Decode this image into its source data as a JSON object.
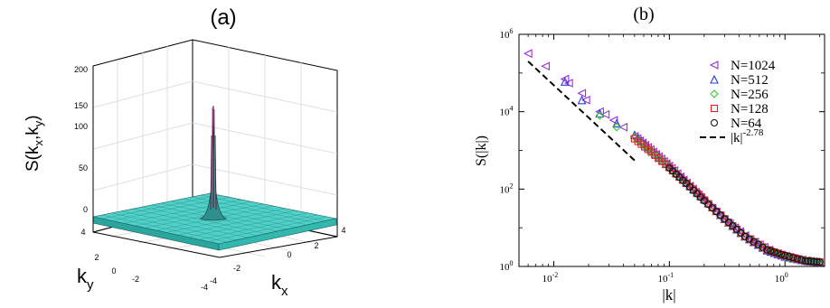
{
  "panel_a": {
    "label": "(a)",
    "zlabel_main": "S(k",
    "zlabel_sub1": "x",
    "zlabel_sep": ",k",
    "zlabel_sub2": "y",
    "zlabel_end": ")",
    "xlabel_main": "k",
    "xlabel_sub": "x",
    "ylabel_main": "k",
    "ylabel_sub": "y",
    "zticks": [
      "0",
      "50",
      "100",
      "150",
      "200"
    ],
    "xticks": [
      "-4",
      "-2",
      "0",
      "2",
      "4"
    ],
    "yticks": [
      "-4",
      "-2",
      "0",
      "2",
      "4"
    ],
    "surface_color": "#4fd1c9",
    "peak_color": "#c04aa8"
  },
  "chart_data": [
    {
      "type": "surface",
      "title": "(a)",
      "xlabel": "kx",
      "ylabel": "ky",
      "zlabel": "S(kx,ky)",
      "xlim": [
        -4,
        4
      ],
      "ylim": [
        -4,
        4
      ],
      "zlim": [
        0,
        200
      ],
      "peak": {
        "x": 0,
        "y": 0,
        "z": 160
      },
      "baseline_z": 0
    },
    {
      "type": "scatter",
      "title": "(b)",
      "xlabel": "|k|",
      "ylabel": "S(|k|)",
      "xscale": "log",
      "yscale": "log",
      "xlim": [
        0.005,
        2.2
      ],
      "ylim": [
        1,
        1000000
      ],
      "xticks": [
        "10",
        "10",
        "10"
      ],
      "xtick_exps": [
        "-2",
        "-1",
        "0"
      ],
      "xtick_values": [
        0.01,
        0.1,
        1
      ],
      "yticks": [
        "10",
        "10",
        "10",
        "10"
      ],
      "ytick_exps": [
        "0",
        "2",
        "4",
        "6"
      ],
      "ytick_values": [
        1,
        100,
        10000,
        1000000
      ],
      "legend_position": "top-right",
      "series": [
        {
          "name": "N=1024",
          "marker": "triangle-left",
          "color": "#9b30d9",
          "x": [
            0.006,
            0.0085,
            0.0125,
            0.0135,
            0.0175,
            0.019,
            0.025,
            0.028,
            0.033,
            0.04,
            0.05,
            0.065,
            0.085,
            0.11,
            0.15,
            0.2,
            0.3,
            0.5,
            0.8,
            1.2,
            1.8
          ],
          "y": [
            320000,
            150000,
            70000,
            55000,
            30000,
            20000,
            10000,
            8500,
            6000,
            4000,
            2300,
            1200,
            600,
            300,
            120,
            50,
            16,
            5,
            2.3,
            1.6,
            1.3
          ]
        },
        {
          "name": "N=512",
          "marker": "triangle-up",
          "color": "#2b3bd6",
          "x": [
            0.0125,
            0.0175,
            0.025,
            0.035,
            0.05,
            0.07,
            0.1,
            0.14,
            0.2,
            0.3,
            0.45,
            0.7,
            1.0,
            1.5,
            2.0
          ],
          "y": [
            60000,
            20000,
            9000,
            5000,
            2500,
            1000,
            380,
            150,
            55,
            17,
            6,
            2.6,
            1.8,
            1.4,
            1.3
          ]
        },
        {
          "name": "N=256",
          "marker": "diamond",
          "color": "#33cc33",
          "x": [
            0.025,
            0.035,
            0.05,
            0.07,
            0.1,
            0.14,
            0.2,
            0.3,
            0.45,
            0.7,
            1.0,
            1.5,
            2.0
          ],
          "y": [
            8000,
            4000,
            2200,
            900,
            370,
            140,
            52,
            17,
            6,
            2.6,
            1.8,
            1.4,
            1.3
          ]
        },
        {
          "name": "N=128",
          "marker": "square",
          "color": "#e32020",
          "x": [
            0.05,
            0.07,
            0.1,
            0.14,
            0.2,
            0.3,
            0.45,
            0.7,
            1.0,
            1.5,
            2.0
          ],
          "y": [
            2000,
            900,
            360,
            140,
            52,
            17,
            6,
            2.7,
            1.9,
            1.4,
            1.3
          ]
        },
        {
          "name": "N=64",
          "marker": "circle",
          "color": "#111111",
          "x": [
            0.1,
            0.14,
            0.2,
            0.3,
            0.45,
            0.7,
            1.0,
            1.5,
            2.0
          ],
          "y": [
            350,
            140,
            50,
            17,
            6,
            2.7,
            1.9,
            1.4,
            1.3
          ]
        },
        {
          "name": "|k|",
          "name_exp": "-2.78",
          "marker": "dashed-line",
          "color": "#000000",
          "x": [
            0.006,
            0.05
          ],
          "y": [
            200000,
            550
          ]
        }
      ]
    }
  ],
  "panel_b": {
    "label": "(b)",
    "ylabel": "S(|k|)",
    "xlabel": "|k|"
  }
}
